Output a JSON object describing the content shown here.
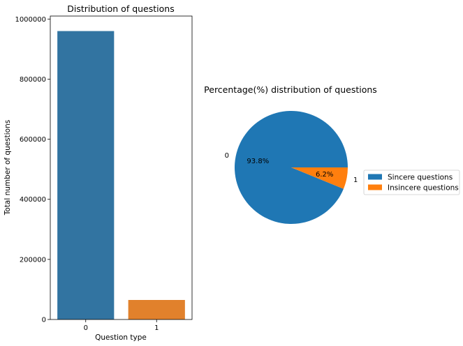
{
  "chart_data": [
    {
      "type": "bar",
      "title": "Distribution of questions",
      "xlabel": "Question type",
      "ylabel": "Total number of questions",
      "categories": [
        "0",
        "1"
      ],
      "values": [
        960000,
        65000
      ],
      "colors": [
        "#3274a1",
        "#e1812c"
      ],
      "ylim": [
        0,
        1010000
      ],
      "yticks": [
        0,
        200000,
        400000,
        600000,
        800000,
        1000000
      ],
      "ytick_labels": [
        "0",
        "200000",
        "400000",
        "600000",
        "800000",
        "1000000"
      ],
      "grid": false
    },
    {
      "type": "pie",
      "title": "Percentage(%) distribution of questions",
      "slice_labels": [
        "0",
        "1"
      ],
      "values": [
        93.8,
        6.2
      ],
      "pct_labels": [
        "93.8%",
        "6.2%"
      ],
      "colors": [
        "#1f77b4",
        "#ff7f0e"
      ],
      "legend": {
        "placement": "right",
        "entries": [
          "Sincere questions",
          "Insincere questions"
        ]
      }
    }
  ]
}
